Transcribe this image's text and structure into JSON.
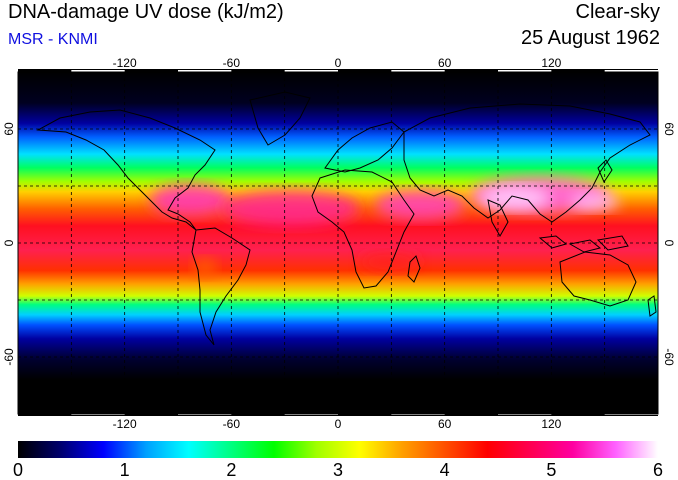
{
  "header": {
    "title": "DNA-damage UV dose (kJ/m2)",
    "source": "MSR - KNMI",
    "condition": "Clear-sky",
    "date": "25 August 1962"
  },
  "map": {
    "lon_ticks": [
      -120,
      -60,
      0,
      60,
      120
    ],
    "lat_ticks": [
      60,
      0,
      -60
    ],
    "lon_range": [
      -180,
      180
    ],
    "lat_range": [
      -90,
      90
    ],
    "grid": "dashed"
  },
  "colorbar": {
    "min": 0,
    "max": 6,
    "labels": [
      "0",
      "1",
      "2",
      "3",
      "4",
      "5",
      "6"
    ],
    "colors": [
      "#000000",
      "#00006e",
      "#0000ff",
      "#00a0ff",
      "#00ffff",
      "#00ff80",
      "#00ff00",
      "#a0ff00",
      "#ffff00",
      "#ffa000",
      "#ff5000",
      "#ff0000",
      "#ff0050",
      "#ff00a0",
      "#ff60ff",
      "#ffffff"
    ]
  }
}
